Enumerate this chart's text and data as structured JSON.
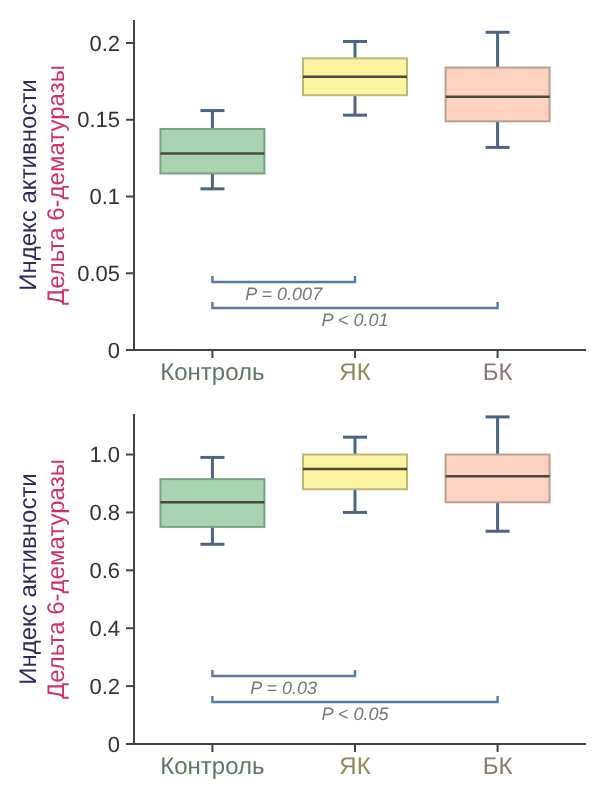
{
  "chart_data": [
    {
      "type": "box",
      "ylabel": "Индекс активности\nДельта 6-дематуразы",
      "categories": [
        "Контроль",
        "ЯК",
        "БК"
      ],
      "colors": [
        "#a8d5b0",
        "#fbf3a0",
        "#fbd3c0"
      ],
      "boxes": [
        {
          "low": 0.105,
          "q1": 0.115,
          "median": 0.128,
          "q3": 0.144,
          "high": 0.156
        },
        {
          "low": 0.153,
          "q1": 0.166,
          "median": 0.178,
          "q3": 0.19,
          "high": 0.201
        },
        {
          "low": 0.132,
          "q1": 0.149,
          "median": 0.165,
          "q3": 0.184,
          "high": 0.207
        }
      ],
      "ylim": [
        0,
        0.215
      ],
      "yticks": [
        0,
        0.05,
        0.1,
        0.15,
        0.2
      ],
      "annotations": [
        "P = 0.007",
        "P < 0.01"
      ]
    },
    {
      "type": "box",
      "ylabel": "Индекс активности\nДельта 6-дематуразы",
      "categories": [
        "Контроль",
        "ЯК",
        "БК"
      ],
      "colors": [
        "#a8d5b0",
        "#fbf3a0",
        "#fbd3c0"
      ],
      "boxes": [
        {
          "low": 0.69,
          "q1": 0.75,
          "median": 0.835,
          "q3": 0.915,
          "high": 0.99
        },
        {
          "low": 0.8,
          "q1": 0.88,
          "median": 0.95,
          "q3": 1.0,
          "high": 1.06
        },
        {
          "low": 0.735,
          "q1": 0.835,
          "median": 0.925,
          "q3": 1.0,
          "high": 1.13
        }
      ],
      "ylim": [
        0,
        1.14
      ],
      "yticks": [
        0,
        {
          "value": 0.2,
          "label": "0.2"
        },
        {
          "value": 0.4,
          "label": "0.4"
        },
        {
          "value": 0.6,
          "label": "0.6"
        },
        {
          "value": 0.8,
          "label": "0.8"
        },
        {
          "value": 1,
          "label": "1.0"
        }
      ],
      "annotations": [
        "P = 0.03",
        "P < 0.05"
      ]
    }
  ]
}
